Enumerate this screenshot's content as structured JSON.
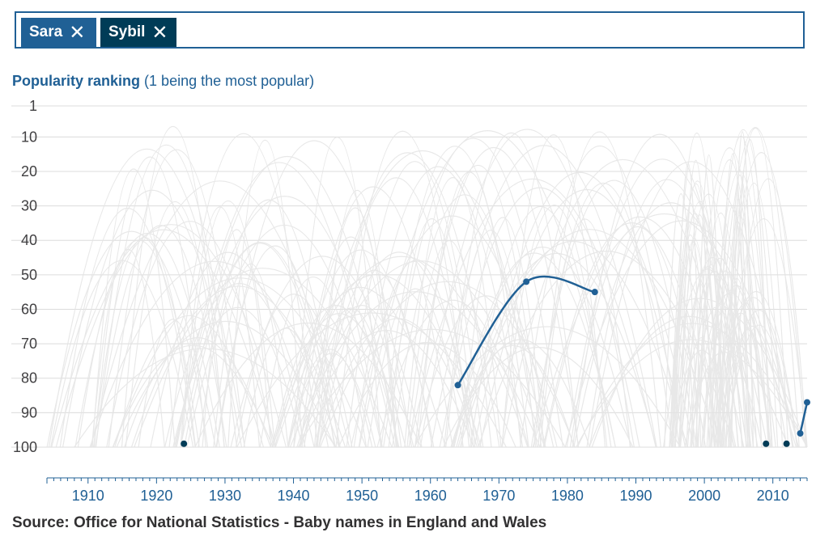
{
  "filter": {
    "tags": [
      {
        "label": "Sara",
        "remove_icon": "close-icon",
        "color": "#206095"
      },
      {
        "label": "Sybil",
        "remove_icon": "close-icon",
        "color": "#003c57"
      }
    ]
  },
  "chart_title": {
    "bold": "Popularity ranking",
    "rest": "(1 being the most popular)"
  },
  "source": "Source: Office for National Statistics - Baby names in England and Wales",
  "chart_data": {
    "type": "line",
    "title": "Popularity ranking (1 being the most popular)",
    "xlabel": "",
    "ylabel": "",
    "y_reversed": true,
    "ylim": [
      1,
      100
    ],
    "xlim": [
      1904,
      2015
    ],
    "y_ticks": [
      1,
      10,
      20,
      30,
      40,
      50,
      60,
      70,
      80,
      90,
      100
    ],
    "x_ticks": [
      1910,
      1920,
      1930,
      1940,
      1950,
      1960,
      1970,
      1980,
      1990,
      2000,
      2010
    ],
    "grid": true,
    "background_series_color": "#e4e4e4",
    "series": [
      {
        "name": "Sara",
        "color": "#206095",
        "segments": [
          [
            {
              "x": 1964,
              "y": 82
            },
            {
              "x": 1974,
              "y": 52
            },
            {
              "x": 1984,
              "y": 55
            }
          ],
          [
            {
              "x": 2014,
              "y": 96
            },
            {
              "x": 2015,
              "y": 87
            }
          ]
        ],
        "points": [
          {
            "x": 1964,
            "y": 82
          },
          {
            "x": 1974,
            "y": 52
          },
          {
            "x": 1984,
            "y": 55
          },
          {
            "x": 2014,
            "y": 96
          },
          {
            "x": 2015,
            "y": 87
          }
        ]
      },
      {
        "name": "Sybil",
        "color": "#003c57",
        "segments": [],
        "points": [
          {
            "x": 1924,
            "y": 99
          },
          {
            "x": 2009,
            "y": 99
          },
          {
            "x": 2012,
            "y": 99
          }
        ]
      }
    ]
  }
}
